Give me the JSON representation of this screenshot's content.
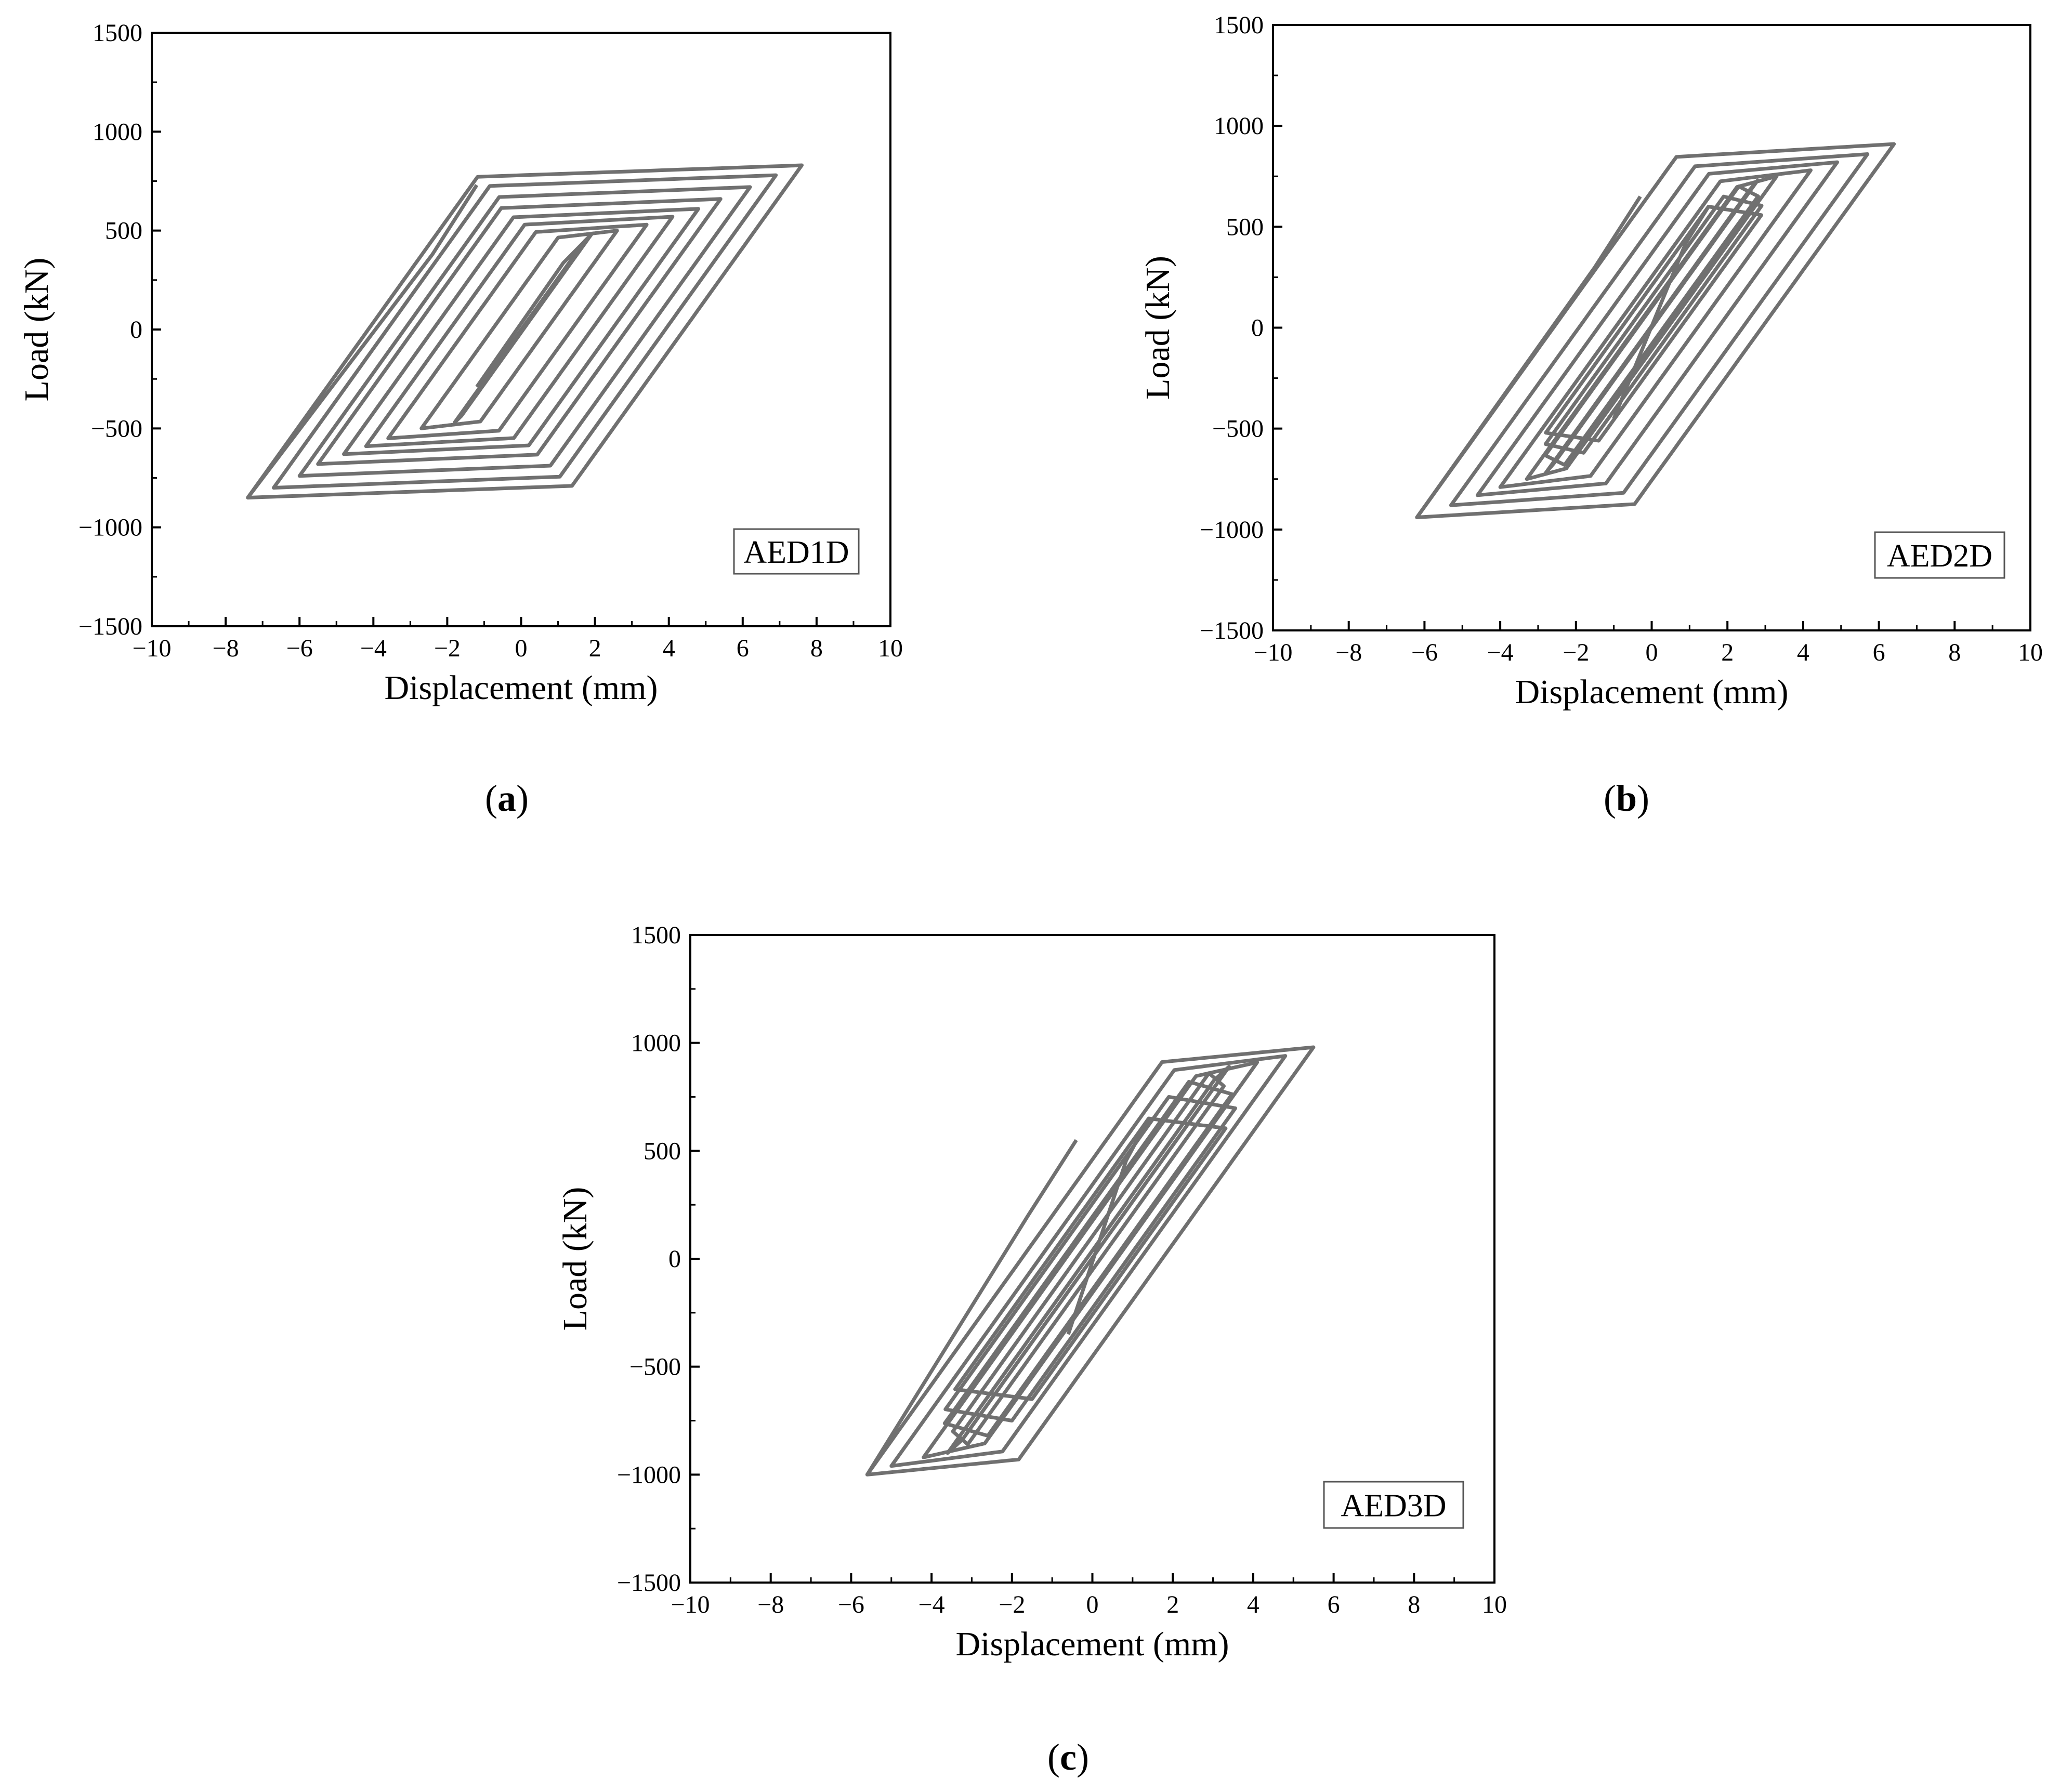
{
  "figure": {
    "panel_labels": [
      "a",
      "b",
      "c"
    ]
  },
  "chart_data": [
    {
      "type": "line",
      "panel": "a",
      "specimen_label": "AED1D",
      "xlabel": "Displacement (mm)",
      "ylabel": "Load (kN)",
      "xlim": [
        -10,
        10
      ],
      "ylim": [
        -1500,
        1500
      ],
      "xticks": [
        -10,
        -8,
        -6,
        -4,
        -2,
        0,
        2,
        4,
        6,
        8,
        10
      ],
      "yticks": [
        -1500,
        -1000,
        -500,
        0,
        500,
        1000,
        1500
      ],
      "x_tick_labels": [
        "−10",
        "−8",
        "−6",
        "−4",
        "−2",
        "0",
        "2",
        "4",
        "6",
        "8",
        "10"
      ],
      "y_tick_labels": [
        "−1500",
        "−1000",
        "−500",
        "0",
        "500",
        "1000",
        "1500"
      ],
      "grid": false,
      "line_color": "#707070",
      "loops": [
        {
          "pos": [
            1.9,
            480
          ],
          "neg": [
            -1.8,
            -470
          ]
        },
        {
          "pos": [
            2.6,
            500
          ],
          "neg": [
            -2.7,
            -500
          ]
        },
        {
          "pos": [
            3.4,
            530
          ],
          "neg": [
            -3.6,
            -550
          ]
        },
        {
          "pos": [
            4.1,
            570
          ],
          "neg": [
            -4.2,
            -590
          ]
        },
        {
          "pos": [
            4.8,
            610
          ],
          "neg": [
            -4.8,
            -630
          ]
        },
        {
          "pos": [
            5.4,
            660
          ],
          "neg": [
            -5.5,
            -680
          ]
        },
        {
          "pos": [
            6.2,
            720
          ],
          "neg": [
            -6.0,
            -740
          ]
        },
        {
          "pos": [
            6.9,
            780
          ],
          "neg": [
            -6.7,
            -800
          ]
        },
        {
          "pos": [
            7.6,
            830
          ],
          "neg": [
            -7.4,
            -850
          ]
        }
      ],
      "start_point": [
        -1.2,
        -290
      ],
      "end_point": [
        -1.2,
        730
      ]
    },
    {
      "type": "line",
      "panel": "b",
      "specimen_label": "AED2D",
      "xlabel": "Displacement (mm)",
      "ylabel": "Load (kN)",
      "xlim": [
        -10,
        10
      ],
      "ylim": [
        -1500,
        1500
      ],
      "xticks": [
        -10,
        -8,
        -6,
        -4,
        -2,
        0,
        2,
        4,
        6,
        8,
        10
      ],
      "yticks": [
        -1500,
        -1000,
        -500,
        0,
        500,
        1000,
        1500
      ],
      "x_tick_labels": [
        "−10",
        "−8",
        "−6",
        "−4",
        "−2",
        "0",
        "2",
        "4",
        "6",
        "8",
        "10"
      ],
      "y_tick_labels": [
        "−1500",
        "−1000",
        "−500",
        "0",
        "500",
        "1000",
        "1500"
      ],
      "grid": false,
      "line_color": "#707070",
      "loops": [
        {
          "pos": [
            1.5,
            600
          ],
          "neg": [
            -1.4,
            -560
          ]
        },
        {
          "pos": [
            1.9,
            650
          ],
          "neg": [
            -1.8,
            -620
          ]
        },
        {
          "pos": [
            2.3,
            700
          ],
          "neg": [
            -2.3,
            -680
          ]
        },
        {
          "pos": [
            2.8,
            730
          ],
          "neg": [
            -2.8,
            -720
          ]
        },
        {
          "pos": [
            3.3,
            750
          ],
          "neg": [
            -3.3,
            -750
          ]
        },
        {
          "pos": [
            4.2,
            780
          ],
          "neg": [
            -4.0,
            -790
          ]
        },
        {
          "pos": [
            4.9,
            820
          ],
          "neg": [
            -4.6,
            -830
          ]
        },
        {
          "pos": [
            5.7,
            860
          ],
          "neg": [
            -5.3,
            -880
          ]
        },
        {
          "pos": [
            6.4,
            910
          ],
          "neg": [
            -6.2,
            -940
          ]
        }
      ],
      "start_point": [
        -1.0,
        -450
      ],
      "end_point": [
        -0.3,
        650
      ]
    },
    {
      "type": "line",
      "panel": "c",
      "specimen_label": "AED3D",
      "xlabel": "Displacement (mm)",
      "ylabel": "Load (kN)",
      "xlim": [
        -10,
        10
      ],
      "ylim": [
        -1500,
        1500
      ],
      "xticks": [
        -10,
        -8,
        -6,
        -4,
        -2,
        0,
        2,
        4,
        6,
        8,
        10
      ],
      "yticks": [
        -1500,
        -1000,
        -500,
        0,
        500,
        1000,
        1500
      ],
      "x_tick_labels": [
        "−10",
        "−8",
        "−6",
        "−4",
        "−2",
        "0",
        "2",
        "4",
        "6",
        "8",
        "10"
      ],
      "y_tick_labels": [
        "−1500",
        "−1000",
        "−500",
        "0",
        "500",
        "1000",
        "1500"
      ],
      "grid": false,
      "line_color": "#707070",
      "loops": [
        {
          "pos": [
            1.4,
            650
          ],
          "neg": [
            -1.5,
            -650
          ]
        },
        {
          "pos": [
            1.9,
            750
          ],
          "neg": [
            -2.0,
            -750
          ]
        },
        {
          "pos": [
            2.4,
            820
          ],
          "neg": [
            -2.6,
            -820
          ]
        },
        {
          "pos": [
            2.9,
            860
          ],
          "neg": [
            -3.1,
            -860
          ]
        },
        {
          "pos": [
            3.4,
            890
          ],
          "neg": [
            -3.6,
            -900
          ]
        },
        {
          "pos": [
            4.1,
            910
          ],
          "neg": [
            -4.2,
            -920
          ]
        },
        {
          "pos": [
            4.8,
            940
          ],
          "neg": [
            -5.0,
            -960
          ]
        },
        {
          "pos": [
            5.5,
            980
          ],
          "neg": [
            -5.6,
            -1000
          ]
        }
      ],
      "start_point": [
        -0.6,
        -350
      ],
      "end_point": [
        -0.4,
        550
      ]
    }
  ]
}
